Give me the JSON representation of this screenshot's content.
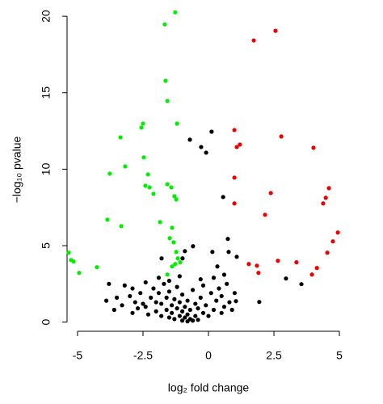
{
  "chart_data": {
    "type": "scatter",
    "x_label": "log₂ fold change",
    "y_label": "−log₁₀ pvalue",
    "xlim": [
      -5.4,
      5.4
    ],
    "ylim": [
      -0.6,
      20.8
    ],
    "xticks": [
      -5,
      -2.5,
      0,
      2.5,
      5
    ],
    "yticks": [
      0,
      5,
      10,
      15,
      20
    ],
    "series": [
      {
        "color": "#00ee00",
        "x": [
          -1.27,
          -1.67,
          -1.64,
          -1.57,
          -1.2,
          -2.5,
          -2.56,
          -3.36,
          -3.77,
          -3.18,
          -2.47,
          -2.31,
          -2.25,
          -2.41,
          -2.1,
          -1.57,
          -1.42,
          -1.3,
          -1.23,
          -3.86,
          -3.33,
          -1.85,
          -1.39,
          -1.48,
          -1.33,
          -1.23,
          -1.17,
          -1.27,
          -1.08,
          -1.39,
          -1.57,
          -5.34,
          -5.25,
          -5.15,
          -4.94,
          -4.26
        ],
        "values": [
          20.26,
          19.47,
          15.78,
          14.46,
          12.98,
          12.98,
          12.72,
          12.08,
          9.71,
          10.18,
          10.77,
          9.66,
          8.81,
          8.92,
          8.39,
          9.02,
          8.81,
          8.23,
          8.02,
          6.7,
          6.28,
          6.54,
          6.17,
          5.49,
          5.22,
          4.59,
          4.17,
          3.8,
          3.91,
          3.64,
          3.11,
          4.54,
          4.06,
          3.96,
          3.22,
          3.59
        ]
      },
      {
        "color": "#ee0000",
        "x": [
          2.56,
          1.73,
          0.99,
          1.2,
          1.08,
          2.78,
          4.01,
          0.99,
          0.99,
          2.38,
          2.16,
          4.6,
          4.48,
          4.38,
          4.94,
          4.75,
          4.54,
          4.14,
          3.95,
          3.36,
          2.65,
          1.54,
          1.85,
          1.91
        ],
        "values": [
          19.05,
          18.42,
          12.56,
          11.61,
          11.45,
          12.14,
          11.4,
          9.45,
          7.76,
          8.44,
          7.02,
          8.76,
          8.13,
          7.76,
          5.86,
          5.28,
          4.54,
          3.54,
          3.11,
          3.91,
          4.01,
          3.8,
          3.69,
          3.22
        ]
      },
      {
        "color": "#000000",
        "x": [
          -0.71,
          0.12,
          -0.28,
          -0.09,
          0.56,
          -0.59,
          0.74,
          0.77,
          0.15,
          -0.9,
          -0.99,
          -1.79,
          1.08,
          1.05,
          1.94,
          2.96,
          3.55,
          0.34,
          -3.8,
          -3.9,
          -3.5,
          -3.3,
          -3.2,
          -3.0,
          -2.9,
          -2.8,
          -2.7,
          -2.6,
          -2.5,
          -2.4,
          -2.4,
          -2.3,
          -2.2,
          -2.1,
          -2.0,
          -2.0,
          -1.9,
          -1.8,
          -1.8,
          -1.7,
          -1.6,
          -1.6,
          -1.5,
          -1.5,
          -1.4,
          -1.4,
          -1.3,
          -1.3,
          -1.2,
          -1.2,
          -1.1,
          -1.1,
          -1.0,
          -1.0,
          -1.0,
          -0.9,
          -0.9,
          -0.8,
          -0.8,
          -0.8,
          -0.7,
          -0.7,
          -0.6,
          -0.6,
          -0.5,
          -0.5,
          -0.4,
          -0.4,
          -0.3,
          -0.2,
          -0.2,
          -0.1,
          0.0,
          0.1,
          0.2,
          0.3,
          0.4,
          0.5,
          0.5,
          0.6,
          0.7,
          0.8,
          0.9,
          1.0,
          -3.6,
          -2.9,
          -1.5,
          -0.3,
          0.2,
          -1.9,
          0.6,
          -1.1
        ],
        "values": [
          11.93,
          12.45,
          11.45,
          11.08,
          8.18,
          4.96,
          5.44,
          4.59,
          4.59,
          4.64,
          4.17,
          4.17,
          4.27,
          1.37,
          1.32,
          2.85,
          2.48,
          3.64,
          2.5,
          1.4,
          1.6,
          1.1,
          2.4,
          1.7,
          2.2,
          1.3,
          0.9,
          1.9,
          1.2,
          2.6,
          1.0,
          0.5,
          1.6,
          2.2,
          1.3,
          0.7,
          1.9,
          0.4,
          1.2,
          2.5,
          0.8,
          1.6,
          0.3,
          2.0,
          1.1,
          0.6,
          1.5,
          0.2,
          0.9,
          2.3,
          0.4,
          1.3,
          0.1,
          0.7,
          1.8,
          0.3,
          1.0,
          0.05,
          0.5,
          1.4,
          0.2,
          0.8,
          0.1,
          2.1,
          0.4,
          1.2,
          0.15,
          0.9,
          1.6,
          0.6,
          2.4,
          1.1,
          0.4,
          1.9,
          0.8,
          1.4,
          2.2,
          0.6,
          1.7,
          1.0,
          2.5,
          1.3,
          0.8,
          1.9,
          0.8,
          0.6,
          2.7,
          2.8,
          2.9,
          2.9,
          3.1,
          3.0
        ]
      }
    ]
  }
}
